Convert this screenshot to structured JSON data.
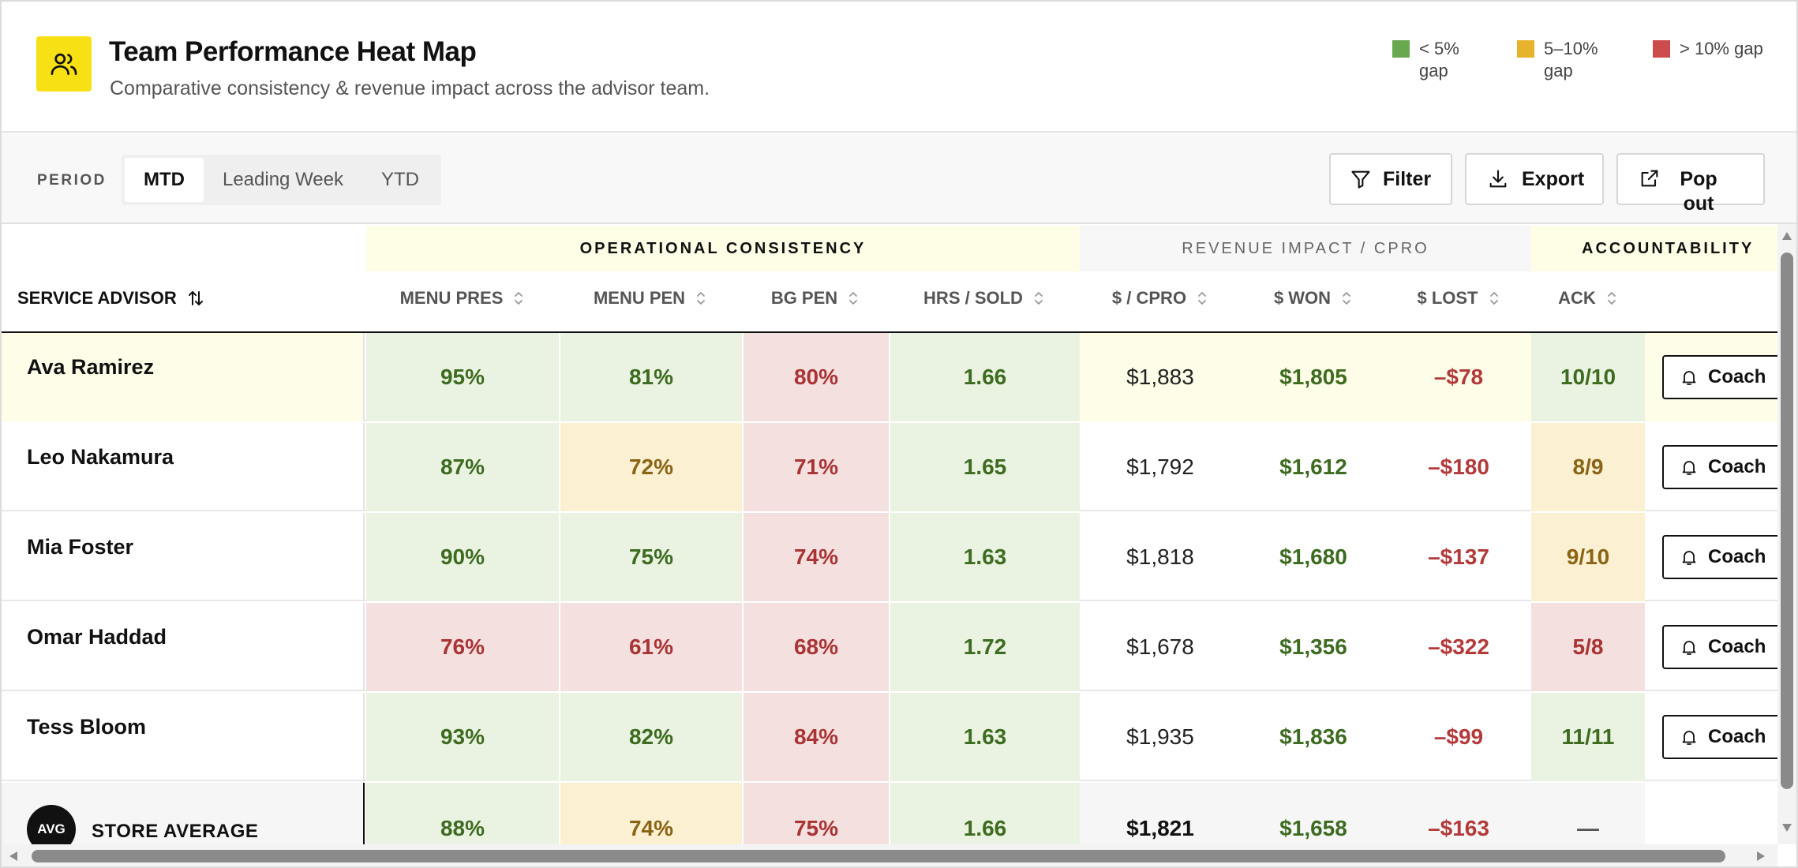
{
  "header": {
    "title": "Team Performance Heat Map",
    "subtitle": "Comparative consistency & revenue impact across the advisor team.",
    "icon": "team-icon",
    "legend": [
      {
        "label": "< 5% gap",
        "color": "#6aa84f"
      },
      {
        "label": "5–10% gap",
        "color": "#e8b32c"
      },
      {
        "label": "> 10% gap",
        "color": "#cc4b4b"
      }
    ]
  },
  "toolbar": {
    "period_label": "PERIOD",
    "periods": [
      "MTD",
      "Leading Week",
      "YTD"
    ],
    "active_period": "MTD",
    "filter_label": "Filter",
    "export_label": "Export",
    "popout_label": "Pop out"
  },
  "table": {
    "groups": {
      "operational": "OPERATIONAL CONSISTENCY",
      "revenue": "REVENUE IMPACT / CPRO",
      "accountability": "ACCOUNTABILITY"
    },
    "columns": {
      "advisor": "SERVICE ADVISOR",
      "menu_pres": "MENU PRES",
      "menu_pen": "MENU PEN",
      "bg_pen": "BG PEN",
      "hrs_sold": "HRS / SOLD",
      "cpro": "$ / CPRO",
      "won": "$ WON",
      "lost": "$ LOST",
      "ack": "ACK"
    },
    "coach_label": "Coach",
    "rows": [
      {
        "name": "Ava Ramirez",
        "menu_pres": "95%",
        "menu_pen": "81%",
        "bg_pen": "80%",
        "hrs_sold": "1.66",
        "cpro": "$1,883",
        "won": "$1,805",
        "lost": "–$78",
        "ack": "10/10"
      },
      {
        "name": "Leo Nakamura",
        "menu_pres": "87%",
        "menu_pen": "72%",
        "bg_pen": "71%",
        "hrs_sold": "1.65",
        "cpro": "$1,792",
        "won": "$1,612",
        "lost": "–$180",
        "ack": "8/9"
      },
      {
        "name": "Mia Foster",
        "menu_pres": "90%",
        "menu_pen": "75%",
        "bg_pen": "74%",
        "hrs_sold": "1.63",
        "cpro": "$1,818",
        "won": "$1,680",
        "lost": "–$137",
        "ack": "9/10"
      },
      {
        "name": "Omar Haddad",
        "menu_pres": "76%",
        "menu_pen": "61%",
        "bg_pen": "68%",
        "hrs_sold": "1.72",
        "cpro": "$1,678",
        "won": "$1,356",
        "lost": "–$322",
        "ack": "5/8"
      },
      {
        "name": "Tess Bloom",
        "menu_pres": "93%",
        "menu_pen": "82%",
        "bg_pen": "84%",
        "hrs_sold": "1.63",
        "cpro": "$1,935",
        "won": "$1,836",
        "lost": "–$99",
        "ack": "11/11"
      }
    ],
    "average": {
      "badge": "AVG",
      "name": "STORE AVERAGE",
      "menu_pres": "88%",
      "menu_pen": "74%",
      "bg_pen": "75%",
      "hrs_sold": "1.66",
      "cpro": "$1,821",
      "won": "$1,658",
      "lost": "–$163",
      "ack": "—"
    }
  },
  "colors": {
    "accent": "#f7e014",
    "good_bg": "#eaf3e1",
    "warn_bg": "#fbf0d2",
    "bad_bg": "#f5e0e0",
    "highlight_row": "#fefde8"
  }
}
